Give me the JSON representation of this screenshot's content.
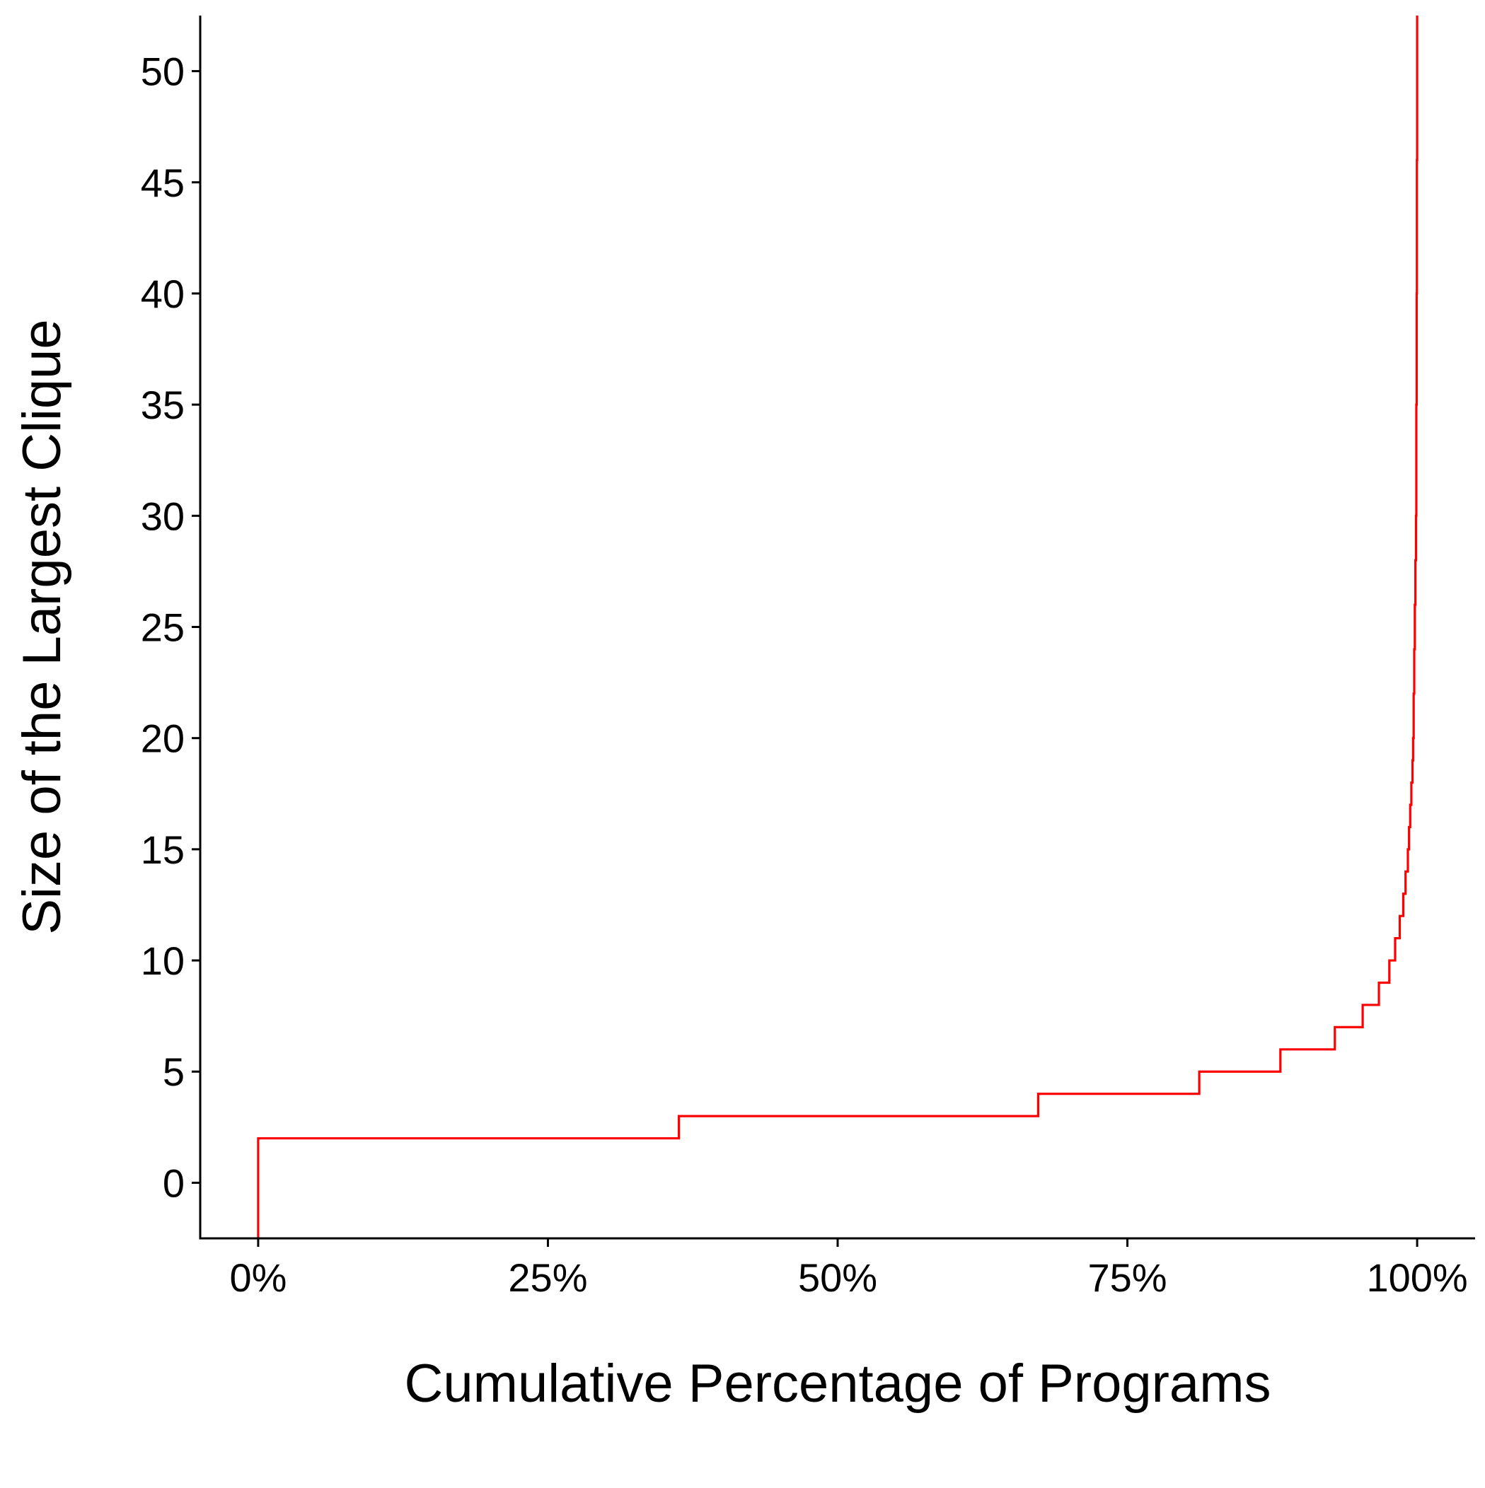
{
  "chart_data": {
    "type": "line",
    "step": true,
    "title": "",
    "xlabel": "Cumulative Percentage of Programs",
    "ylabel": "Size of the Largest Clique",
    "x_format": "percent",
    "xlim": [
      -0.05,
      1.05
    ],
    "ylim": [
      -2.5,
      52.5
    ],
    "xticks": [
      0,
      0.25,
      0.5,
      0.75,
      1.0
    ],
    "xtick_labels": [
      "0%",
      "25%",
      "50%",
      "75%",
      "100%"
    ],
    "yticks": [
      0,
      5,
      10,
      15,
      20,
      25,
      30,
      35,
      40,
      45,
      50
    ],
    "ytick_labels": [
      "0",
      "5",
      "10",
      "15",
      "20",
      "25",
      "30",
      "35",
      "40",
      "45",
      "50"
    ],
    "grid": false,
    "series": [
      {
        "color": "#ff0000",
        "x": [
          0,
          0,
          0.363,
          0.673,
          0.812,
          0.882,
          0.929,
          0.953,
          0.967,
          0.976,
          0.981,
          0.985,
          0.988,
          0.99,
          0.992,
          0.993,
          0.994,
          0.995,
          0.996,
          0.9965,
          0.997,
          0.9975,
          0.998,
          0.9985,
          0.999,
          0.9993,
          0.9996,
          0.9998,
          1.0
        ],
        "y": [
          -2.5,
          2,
          3,
          4,
          5,
          6,
          7,
          8,
          9,
          10,
          11,
          12,
          13,
          14,
          15,
          16,
          17,
          18,
          19,
          20,
          22,
          24,
          26,
          28,
          30,
          35,
          40,
          46,
          52.5
        ]
      }
    ]
  }
}
